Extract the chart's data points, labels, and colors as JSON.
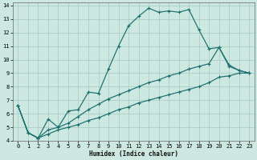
{
  "xlabel": "Humidex (Indice chaleur)",
  "bg_color": "#cce8e0",
  "grid_color": "#aacec8",
  "line_color": "#1a6e6e",
  "xlim": [
    -0.5,
    23.5
  ],
  "ylim": [
    4,
    14.2
  ],
  "xticks": [
    0,
    1,
    2,
    3,
    4,
    5,
    6,
    7,
    8,
    9,
    10,
    11,
    12,
    13,
    14,
    15,
    16,
    17,
    18,
    19,
    20,
    21,
    22,
    23
  ],
  "yticks": [
    4,
    5,
    6,
    7,
    8,
    9,
    10,
    11,
    12,
    13,
    14
  ],
  "line1_x": [
    0,
    1,
    2,
    3,
    4,
    5,
    6,
    7,
    8,
    9,
    10,
    11,
    12,
    13,
    14,
    15,
    16,
    17,
    18,
    19,
    20,
    21,
    22,
    23
  ],
  "line1_y": [
    6.6,
    4.6,
    4.2,
    5.6,
    5.0,
    6.2,
    6.3,
    7.6,
    7.5,
    9.3,
    11.0,
    12.5,
    13.2,
    13.8,
    13.5,
    13.6,
    13.5,
    13.7,
    12.2,
    10.8,
    10.9,
    9.5,
    9.2,
    9.0
  ],
  "line2_x": [
    0,
    1,
    2,
    3,
    4,
    5,
    6,
    7,
    8,
    9,
    10,
    11,
    12,
    13,
    14,
    15,
    16,
    17,
    18,
    19,
    20,
    21,
    22,
    23
  ],
  "line2_y": [
    6.6,
    4.6,
    4.2,
    4.8,
    5.0,
    5.3,
    5.8,
    6.3,
    6.7,
    7.1,
    7.4,
    7.7,
    8.0,
    8.3,
    8.5,
    8.8,
    9.0,
    9.3,
    9.5,
    9.7,
    10.9,
    9.6,
    9.2,
    9.0
  ],
  "line3_x": [
    0,
    1,
    2,
    3,
    4,
    5,
    6,
    7,
    8,
    9,
    10,
    11,
    12,
    13,
    14,
    15,
    16,
    17,
    18,
    19,
    20,
    21,
    22,
    23
  ],
  "line3_y": [
    6.6,
    4.6,
    4.2,
    4.5,
    4.8,
    5.0,
    5.2,
    5.5,
    5.7,
    6.0,
    6.3,
    6.5,
    6.8,
    7.0,
    7.2,
    7.4,
    7.6,
    7.8,
    8.0,
    8.3,
    8.7,
    8.8,
    9.0,
    9.0
  ],
  "xlabel_fontsize": 5.5,
  "tick_fontsize": 5.0,
  "xlabel_family": "monospace"
}
